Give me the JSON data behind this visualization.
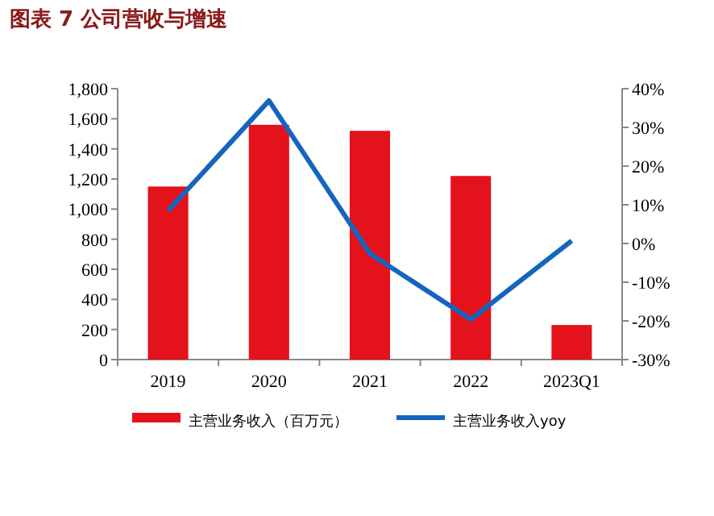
{
  "chart_data": {
    "type": "bar",
    "title": "图表 7 公司营收与增速",
    "categories": [
      "2019",
      "2020",
      "2021",
      "2022",
      "2023Q1"
    ],
    "series": [
      {
        "name": "主营业务收入（百万元）",
        "color": "#e3121b",
        "values": [
          1150,
          1560,
          1520,
          1220,
          230
        ]
      },
      {
        "name": "主营业务收入yoy",
        "type": "line",
        "axis": "y2",
        "color": "#1565c0",
        "values": [
          8.5,
          36.9,
          -2.6,
          -19.6,
          0.7
        ]
      }
    ],
    "ylim": [
      0,
      1800
    ],
    "yticks": [
      {
        "value": 0,
        "label": "0"
      },
      {
        "value": 200,
        "label": "200"
      },
      {
        "value": 400,
        "label": "400"
      },
      {
        "value": 600,
        "label": "600"
      },
      {
        "value": 800,
        "label": "800"
      },
      {
        "value": 1000,
        "label": "1,000"
      },
      {
        "value": 1200,
        "label": "1,200"
      },
      {
        "value": 1400,
        "label": "1,400"
      },
      {
        "value": 1600,
        "label": "1,600"
      },
      {
        "value": 1800,
        "label": "1,800"
      }
    ],
    "y2lim": [
      -30,
      40
    ],
    "y2ticks": [
      {
        "value": -30,
        "label": "-30%"
      },
      {
        "value": -20,
        "label": "-20%"
      },
      {
        "value": -10,
        "label": "-10%"
      },
      {
        "value": 0,
        "label": "0%"
      },
      {
        "value": 10,
        "label": "10%"
      },
      {
        "value": 20,
        "label": "20%"
      },
      {
        "value": 30,
        "label": "30%"
      },
      {
        "value": 40,
        "label": "40%"
      }
    ],
    "grid": false,
    "legend": "bottom",
    "marker": "none",
    "line_style": "solid"
  }
}
